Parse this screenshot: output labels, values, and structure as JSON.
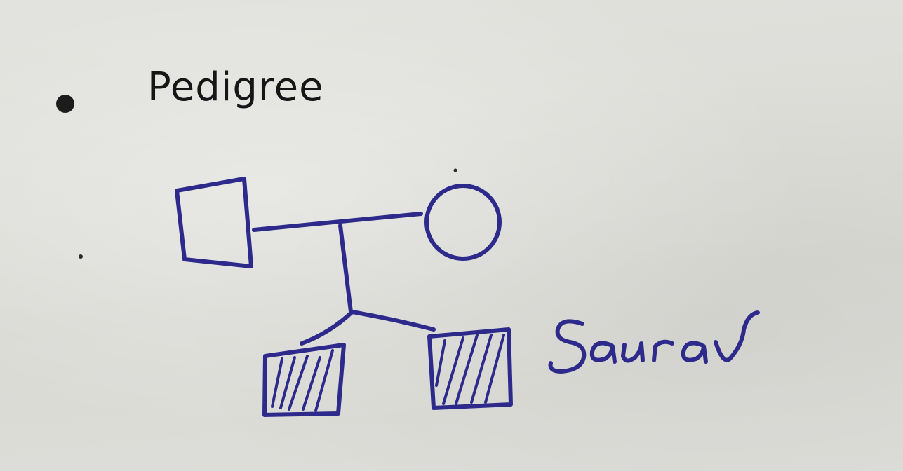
{
  "heading": {
    "text": "Pedigree"
  },
  "pedigree": {
    "father": {
      "sex": "male",
      "affected": false
    },
    "mother": {
      "sex": "female",
      "affected": false
    },
    "children": [
      {
        "sex": "male",
        "affected": true
      },
      {
        "sex": "male",
        "affected": true
      }
    ]
  },
  "handwritten_label": "Saurav",
  "ink_color": "#2e2a8c"
}
